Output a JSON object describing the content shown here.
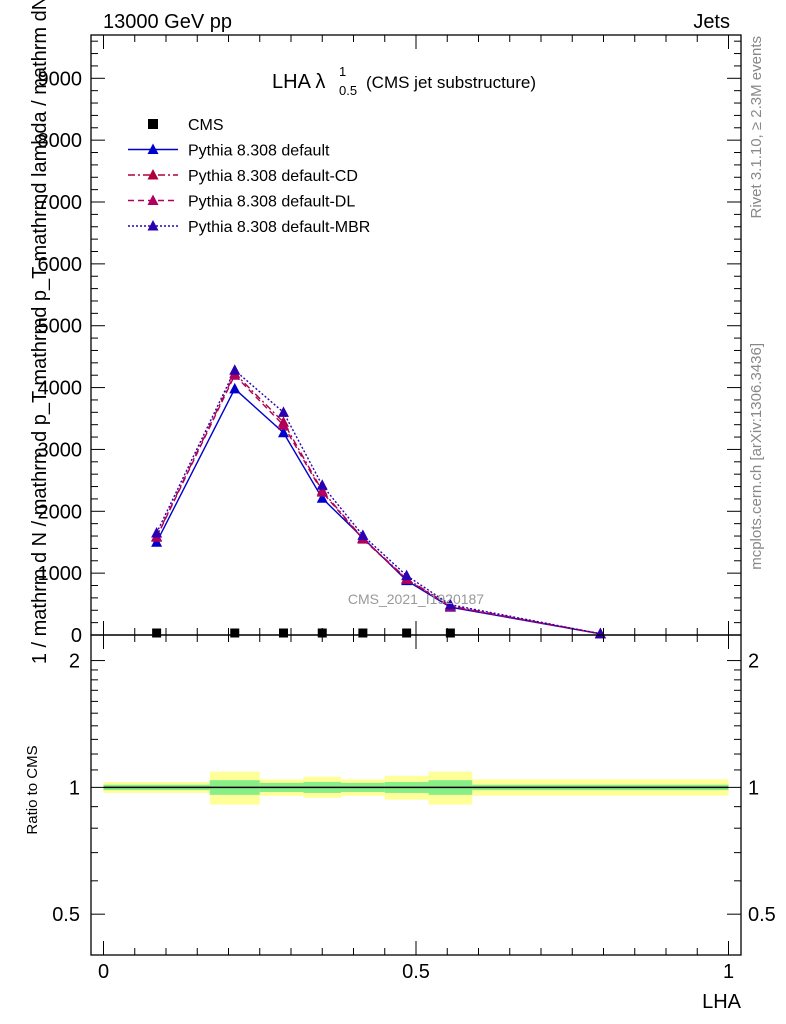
{
  "header": {
    "left": "13000 GeV pp",
    "right": "Jets"
  },
  "plot_title": "LHA λ",
  "plot_title_sup": "1",
  "plot_title_sub": "0.5",
  "plot_title_suffix": "(CMS jet substructure)",
  "side_text_top": "Rivet 3.1.10, ≥ 2.3M events",
  "side_text_bottom": "mcplots.cern.ch [arXiv:1306.3436]",
  "watermark": "CMS_2021_I1920187",
  "ylabel_main": "1 / mathrm d N / mathrm d p_T mathrmd p_T mathrmd lambda / mathrm dN",
  "ylabel_ratio": "Ratio to CMS",
  "xlabel": "LHA",
  "colors": {
    "default": "#0000cc",
    "cd": "#b0003c",
    "dl": "#b00060",
    "mbr": "#2a00b0",
    "band_inner": "#88ee88",
    "band_outer": "#ffff99"
  },
  "chart_data": [
    {
      "type": "line",
      "xlim": [
        -0.02,
        1.02
      ],
      "ylim": [
        0,
        9700
      ],
      "yticks": [
        0,
        1000,
        2000,
        3000,
        4000,
        5000,
        6000,
        7000,
        8000,
        9000
      ],
      "ytick_labels": [
        "0",
        "1000",
        "2000",
        "3000",
        "4000",
        "5000",
        "6000",
        "7000",
        "8000",
        "9000"
      ],
      "legend_position": "top-left",
      "cms_x": [
        0.085,
        0.21,
        0.288,
        0.35,
        0.415,
        0.485,
        0.555
      ],
      "cms_y": [
        0,
        0,
        0,
        0,
        0,
        0,
        0
      ],
      "series": [
        {
          "name": "CMS",
          "style": "square",
          "color": "#000000"
        },
        {
          "name": "Pythia 8.308 default",
          "style": "solid",
          "color": "#0000cc",
          "x": [
            0.085,
            0.21,
            0.288,
            0.35,
            0.415,
            0.485,
            0.555,
            0.795
          ],
          "y": [
            1500,
            3980,
            3270,
            2210,
            1570,
            880,
            450,
            20
          ]
        },
        {
          "name": "Pythia 8.308 default-CD",
          "style": "dashdot",
          "color": "#b0003c",
          "x": [
            0.085,
            0.21,
            0.288,
            0.35,
            0.415,
            0.485,
            0.555,
            0.795
          ],
          "y": [
            1590,
            4230,
            3440,
            2330,
            1560,
            910,
            470,
            20
          ]
        },
        {
          "name": "Pythia 8.308 default-DL",
          "style": "dashed",
          "color": "#b00060",
          "x": [
            0.085,
            0.21,
            0.288,
            0.35,
            0.415,
            0.485,
            0.555,
            0.795
          ],
          "y": [
            1580,
            4200,
            3390,
            2310,
            1550,
            900,
            460,
            20
          ]
        },
        {
          "name": "Pythia 8.308 default-MBR",
          "style": "dotted",
          "color": "#2a00b0",
          "x": [
            0.085,
            0.21,
            0.288,
            0.35,
            0.415,
            0.485,
            0.555,
            0.795
          ],
          "y": [
            1650,
            4280,
            3600,
            2420,
            1610,
            960,
            490,
            20
          ]
        }
      ]
    },
    {
      "type": "area",
      "xlim": [
        -0.02,
        1.02
      ],
      "ylim": [
        0.4,
        2.3
      ],
      "log_y": true,
      "yticks": [
        0.5,
        1,
        2
      ],
      "ytick_labels": [
        "0.5",
        "1",
        "2"
      ],
      "xticks": [
        0,
        0.5,
        1
      ],
      "xtick_labels": [
        "0",
        "0.5",
        "1"
      ],
      "reference": 1,
      "bins": [
        {
          "x0": 0.0,
          "x1": 0.17,
          "inner": [
            0.985,
            1.015
          ],
          "outer": [
            0.97,
            1.03
          ]
        },
        {
          "x0": 0.17,
          "x1": 0.25,
          "inner": [
            0.96,
            1.04
          ],
          "outer": [
            0.91,
            1.09
          ]
        },
        {
          "x0": 0.25,
          "x1": 0.32,
          "inner": [
            0.975,
            1.025
          ],
          "outer": [
            0.955,
            1.045
          ]
        },
        {
          "x0": 0.32,
          "x1": 0.38,
          "inner": [
            0.97,
            1.03
          ],
          "outer": [
            0.945,
            1.06
          ]
        },
        {
          "x0": 0.38,
          "x1": 0.45,
          "inner": [
            0.975,
            1.025
          ],
          "outer": [
            0.955,
            1.045
          ]
        },
        {
          "x0": 0.45,
          "x1": 0.52,
          "inner": [
            0.97,
            1.03
          ],
          "outer": [
            0.935,
            1.065
          ]
        },
        {
          "x0": 0.52,
          "x1": 0.59,
          "inner": [
            0.96,
            1.04
          ],
          "outer": [
            0.91,
            1.09
          ]
        },
        {
          "x0": 0.59,
          "x1": 1.0,
          "inner": [
            0.985,
            1.015
          ],
          "outer": [
            0.955,
            1.045
          ]
        }
      ]
    }
  ]
}
